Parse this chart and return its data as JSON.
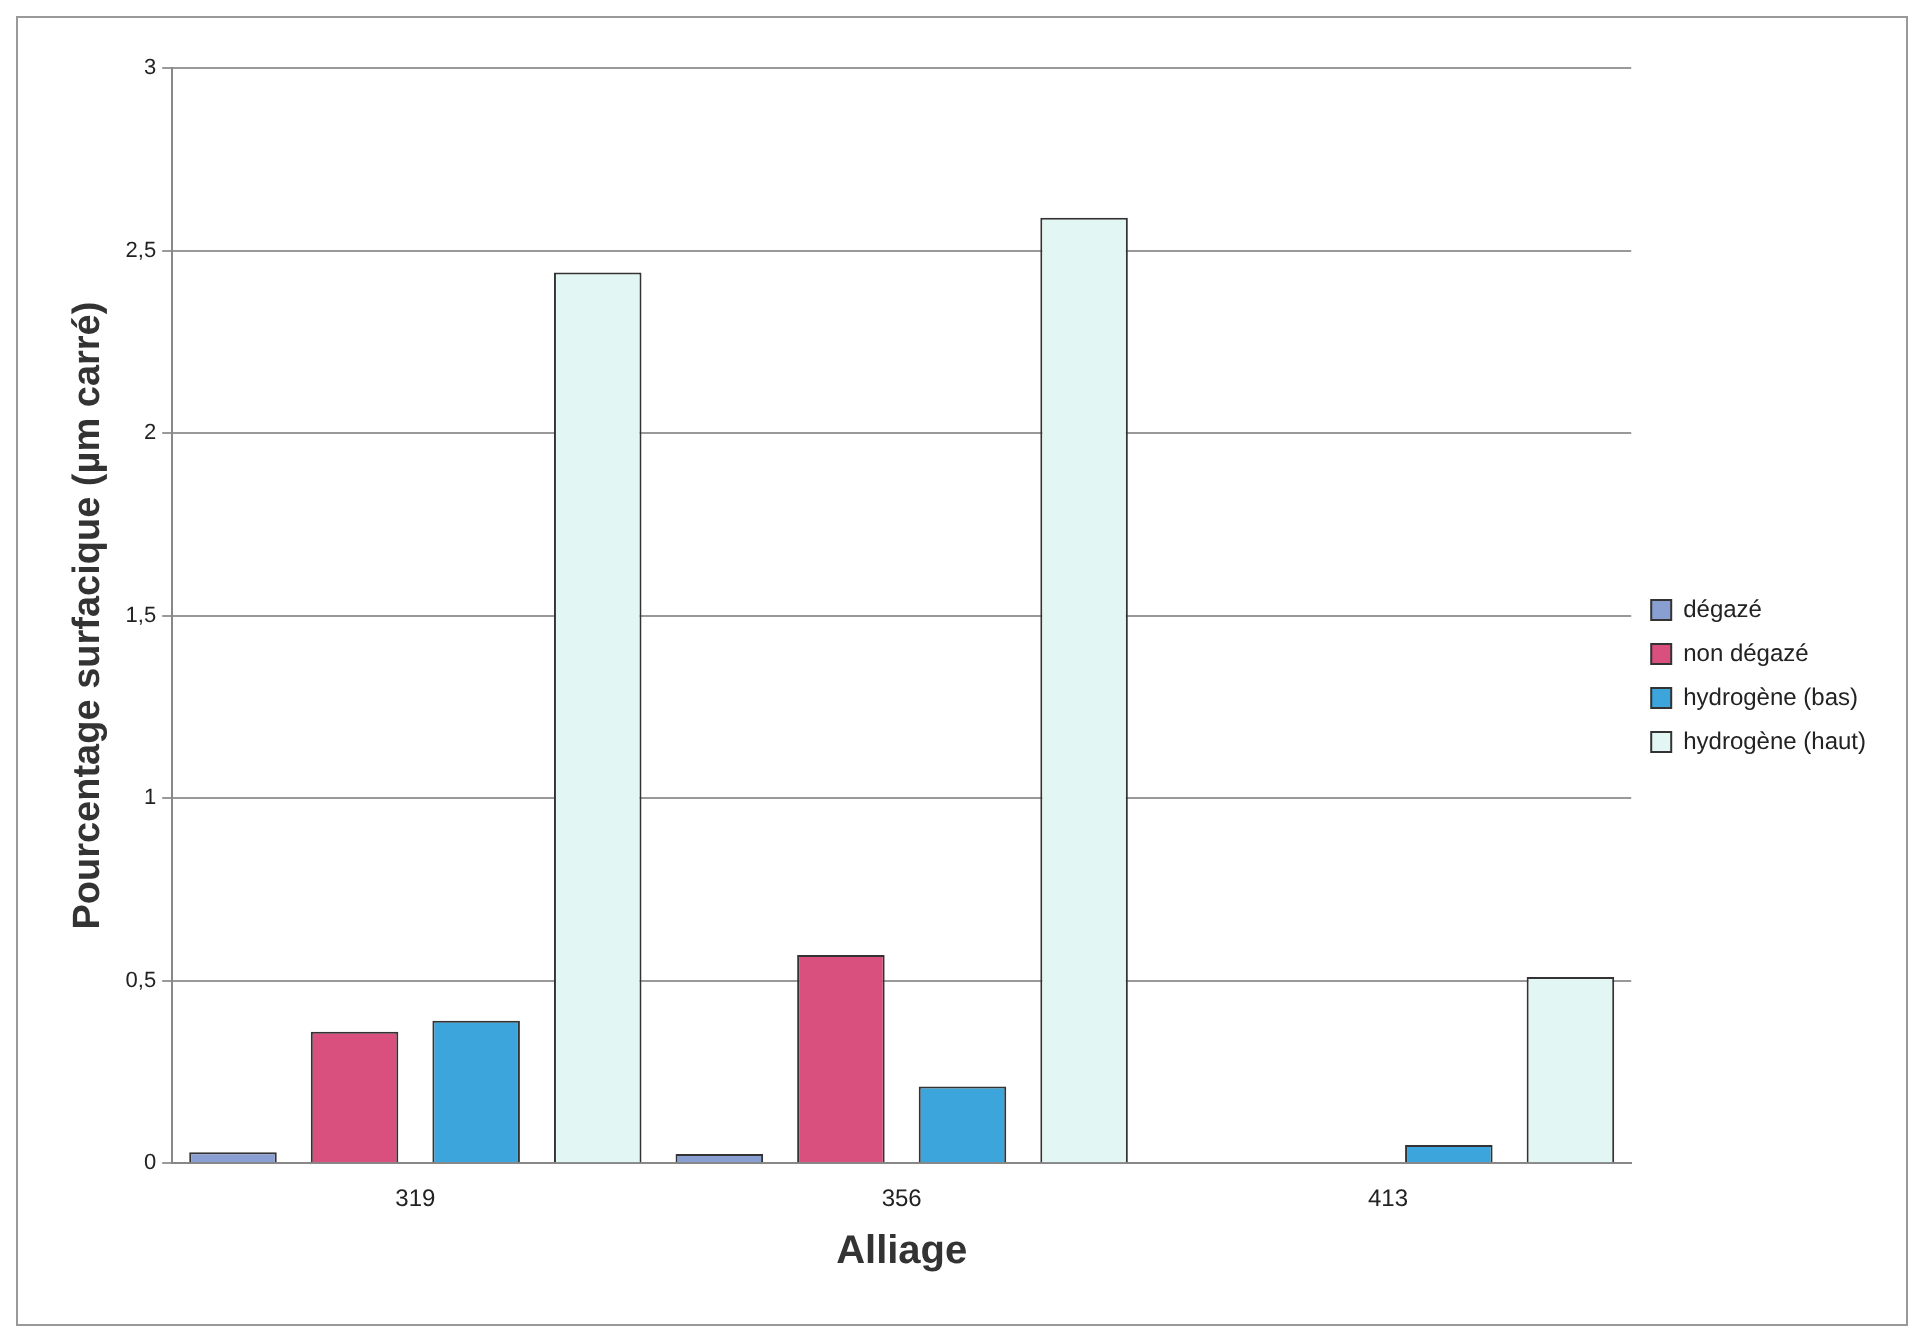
{
  "chart_data": {
    "type": "bar",
    "xlabel": "Alliage",
    "ylabel": "Pourcentage surfacique (µm carré)",
    "categories": [
      "319",
      "356",
      "413"
    ],
    "series": [
      {
        "name": "dégazé",
        "color": "#8a9fd1",
        "values": [
          0.03,
          0.025,
          0
        ]
      },
      {
        "name": "non dégazé",
        "color": "#d9507e",
        "values": [
          0.36,
          0.57,
          0
        ]
      },
      {
        "name": "hydrogène (bas)",
        "color": "#3ca6dc",
        "values": [
          0.39,
          0.21,
          0.05
        ]
      },
      {
        "name": "hydrogène (haut)",
        "color": "#e2f6f4",
        "values": [
          2.44,
          2.59,
          0.51
        ]
      }
    ],
    "ylim": [
      0,
      3
    ],
    "yticks": [
      {
        "value": 0,
        "label": "0"
      },
      {
        "value": 0.5,
        "label": "0,5"
      },
      {
        "value": 1,
        "label": "1"
      },
      {
        "value": 1.5,
        "label": "1,5"
      },
      {
        "value": 2,
        "label": "2"
      },
      {
        "value": 2.5,
        "label": "2,5"
      },
      {
        "value": 3,
        "label": "3"
      }
    ],
    "grid": "y",
    "legend": "right"
  }
}
